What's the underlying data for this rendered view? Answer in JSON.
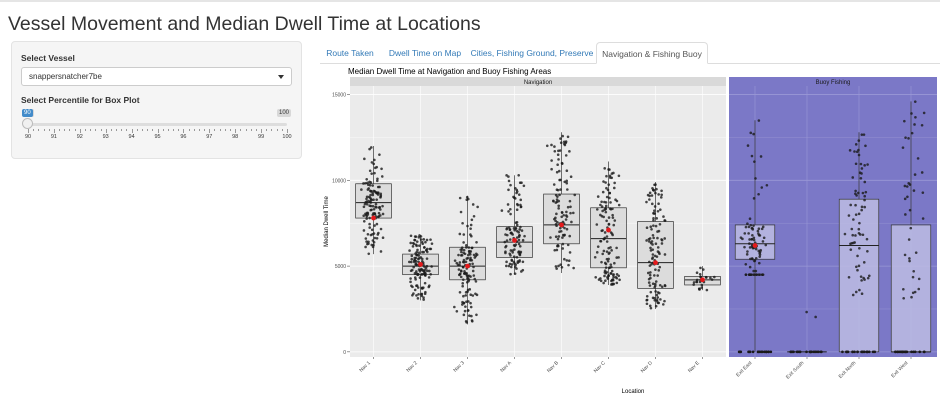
{
  "app": {
    "title": "Vessel Movement and Median Dwell Time at Locations"
  },
  "sidebar": {
    "vessel_label": "Select Vessel",
    "vessel_value": "snappersnatcher7be",
    "percentile_label": "Select Percentile for Box Plot",
    "slider_min": "90",
    "slider_max": "100",
    "slider_value": "90",
    "slider_ticks": [
      "90",
      "91",
      "92",
      "93",
      "94",
      "95",
      "96",
      "97",
      "98",
      "99",
      "100"
    ]
  },
  "tabs": [
    {
      "label": "Route Taken",
      "active": false
    },
    {
      "label": "Dwell Time on Map",
      "active": false
    },
    {
      "label": "Cities, Fishing Ground, Preserve",
      "active": false
    },
    {
      "label": "Navigation & Fishing Buoy",
      "active": true
    }
  ],
  "colors": {
    "navigation_panel": "#ebebeb",
    "buoy_panel": "#7b78c7",
    "box_fill": "#d9d9d9",
    "mean_point": "#e41a1c",
    "point": "#1a1a1a",
    "accent": "#428bca"
  },
  "chart_data": {
    "type": "box",
    "title": "Median Dwell Time at Navigation and Buoy Fishing Areas",
    "xlabel": "Location",
    "ylabel": "Median Dwell Time",
    "ylim": [
      -300,
      15500
    ],
    "yticks": [
      0,
      5000,
      10000,
      15000
    ],
    "ytick_labels": [
      "0",
      "5000",
      "10000",
      "15000"
    ],
    "grid": true,
    "panels": [
      {
        "name": "Navigation",
        "categories": [
          {
            "label": "Nav 1",
            "min": 5700,
            "q1": 7800,
            "median": 8700,
            "q3": 9800,
            "max": 12000,
            "mean": 7800,
            "n": 130,
            "zeros": 0
          },
          {
            "label": "Nav 2",
            "min": 3000,
            "q1": 4500,
            "median": 5000,
            "q3": 5700,
            "max": 6800,
            "mean": 5100,
            "n": 130,
            "zeros": 0
          },
          {
            "label": "Nav 3",
            "min": 1600,
            "q1": 4200,
            "median": 5000,
            "q3": 6100,
            "max": 9100,
            "mean": 5000,
            "n": 130,
            "zeros": 0
          },
          {
            "label": "Nav A",
            "min": 4500,
            "q1": 5500,
            "median": 6400,
            "q3": 7300,
            "max": 10300,
            "mean": 6500,
            "n": 110,
            "zeros": 0
          },
          {
            "label": "Nav B",
            "min": 4600,
            "q1": 6300,
            "median": 7400,
            "q3": 9200,
            "max": 12800,
            "mean": 7400,
            "n": 110,
            "zeros": 0
          },
          {
            "label": "Nav C",
            "min": 3900,
            "q1": 4900,
            "median": 6600,
            "q3": 8400,
            "max": 11100,
            "mean": 7100,
            "n": 130,
            "zeros": 0
          },
          {
            "label": "Nav D",
            "min": 2500,
            "q1": 3700,
            "median": 5200,
            "q3": 7600,
            "max": 9900,
            "mean": 5200,
            "n": 120,
            "zeros": 0
          },
          {
            "label": "Nav E",
            "min": 3600,
            "q1": 3900,
            "median": 4200,
            "q3": 4400,
            "max": 5000,
            "mean": 4200,
            "n": 25,
            "zeros": 0
          }
        ]
      },
      {
        "name": "Buoy Fishing",
        "categories": [
          {
            "label": "Exit East",
            "min": 0,
            "q1": 5400,
            "median": 6300,
            "q3": 7400,
            "max": 13500,
            "mean": 6200,
            "n": 110,
            "zeros": 20
          },
          {
            "label": "Exit South",
            "min": 0,
            "q1": 0,
            "median": 0,
            "q3": 0,
            "max": 0,
            "mean": null,
            "n": 22,
            "zeros": 20
          },
          {
            "label": "Exit North",
            "min": 0,
            "q1": 0,
            "median": 6200,
            "q3": 8900,
            "max": 12800,
            "mean": null,
            "n": 90,
            "zeros": 20
          },
          {
            "label": "Exit West",
            "min": 0,
            "q1": 0,
            "median": 0,
            "q3": 7400,
            "max": 14600,
            "mean": null,
            "n": 60,
            "zeros": 20
          }
        ]
      }
    ]
  }
}
